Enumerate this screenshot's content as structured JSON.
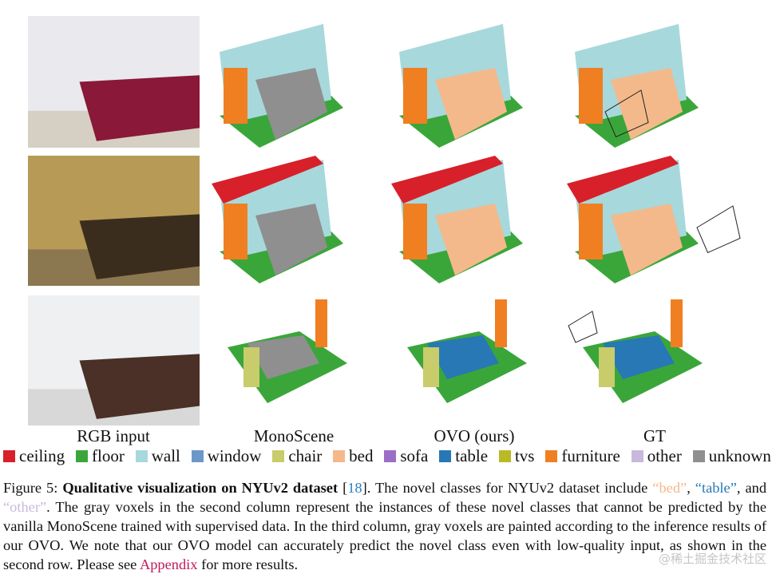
{
  "figure": {
    "column_labels": [
      "RGB input",
      "MonoScene",
      "OVO (ours)",
      "GT"
    ],
    "legend": [
      {
        "label": "ceiling",
        "color": "#d7202a"
      },
      {
        "label": "floor",
        "color": "#3aa63a"
      },
      {
        "label": "wall",
        "color": "#a7d8dc"
      },
      {
        "label": "window",
        "color": "#6c98c8"
      },
      {
        "label": "chair",
        "color": "#c9cc6a"
      },
      {
        "label": "bed",
        "color": "#f4b98a"
      },
      {
        "label": "sofa",
        "color": "#9b6fc6"
      },
      {
        "label": "table",
        "color": "#2878b5"
      },
      {
        "label": "tvs",
        "color": "#b9ba24"
      },
      {
        "label": "furniture",
        "color": "#f07f22"
      },
      {
        "label": "other",
        "color": "#c9b8dd"
      },
      {
        "label": "unknown",
        "color": "#8f8f8f"
      }
    ],
    "caption": {
      "label": "Figure 5:",
      "title": "Qualitative visualization on NYUv2 dataset",
      "ref_open": "[",
      "ref": "18",
      "text_1": "]. The novel classes for NYUv2 dataset include",
      "novel_1": "“bed”",
      "sep_1": ",",
      "novel_2": "“table”",
      "sep_2": ", and",
      "novel_3": "“other”",
      "text_2": ". The gray voxels in the second column represent the instances of these novel classes that cannot be predicted by the vanilla MonoScene trained with supervised data. In the third column, gray voxels are painted according to the inference results of our OVO. We note that our OVO model can accurately predict the novel class even with low-quality input, as shown in the second row. Please see",
      "appendix": "Appendix",
      "text_3": "for more results."
    },
    "watermark": "@稀土掘金技术社区"
  }
}
